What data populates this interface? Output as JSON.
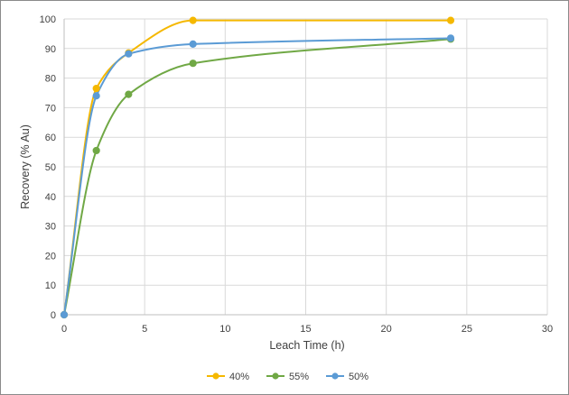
{
  "chart_data": {
    "type": "scatter",
    "smooth": true,
    "xlabel": "Leach Time (h)",
    "ylabel": "Recovery (% Au)",
    "xlim": [
      0,
      30
    ],
    "ylim": [
      0,
      100
    ],
    "x_ticks": [
      0,
      5,
      10,
      15,
      20,
      25,
      30
    ],
    "y_ticks": [
      0,
      10,
      20,
      30,
      40,
      50,
      60,
      70,
      80,
      90,
      100
    ],
    "grid": true,
    "legend_position": "bottom",
    "series": [
      {
        "name": "40%",
        "color": "#f5b800",
        "x": [
          0,
          2,
          4,
          8,
          24
        ],
        "y": [
          0,
          76.5,
          88.5,
          99.5,
          99.5
        ]
      },
      {
        "name": "55%",
        "color": "#70a845",
        "x": [
          0,
          2,
          4,
          8,
          24
        ],
        "y": [
          0,
          55.5,
          74.5,
          85,
          93.2
        ]
      },
      {
        "name": "50%",
        "color": "#5b9bd5",
        "x": [
          0,
          2,
          4,
          8,
          24
        ],
        "y": [
          0,
          74,
          88.2,
          91.5,
          93.5
        ]
      }
    ]
  }
}
